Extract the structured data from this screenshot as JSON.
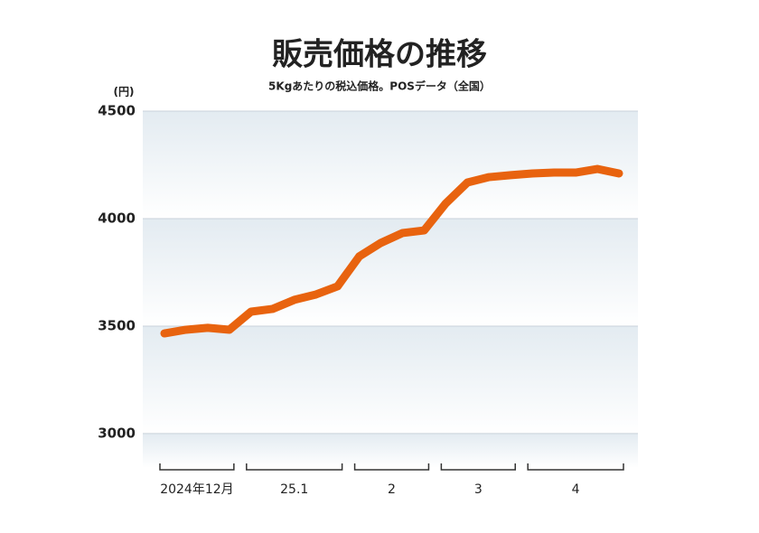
{
  "chart_data": {
    "type": "line",
    "title": "販売価格の推移",
    "subtitle": "5Kgあたりの税込価格。POSデータ（全国）",
    "y_unit": "(円)",
    "categories": [
      "2024年12月",
      "2024年12月",
      "2024年12月",
      "2024年12月",
      "25.1",
      "25.1",
      "25.1",
      "25.1",
      "25.1",
      "2",
      "2",
      "2",
      "2",
      "3",
      "3",
      "3",
      "3",
      "4",
      "4",
      "4",
      "4",
      "4"
    ],
    "series": [
      {
        "name": "販売価格",
        "color": "#e8630f",
        "values": [
          3466,
          3483,
          3492,
          3483,
          3567,
          3580,
          3622,
          3647,
          3685,
          3824,
          3887,
          3933,
          3945,
          4071,
          4168,
          4193,
          4202,
          4210,
          4214,
          4214,
          4231,
          4210
        ]
      }
    ],
    "ylim": [
      2840,
      4500
    ],
    "yticks": [
      3000,
      3500,
      4000,
      4500
    ],
    "grid": true
  }
}
